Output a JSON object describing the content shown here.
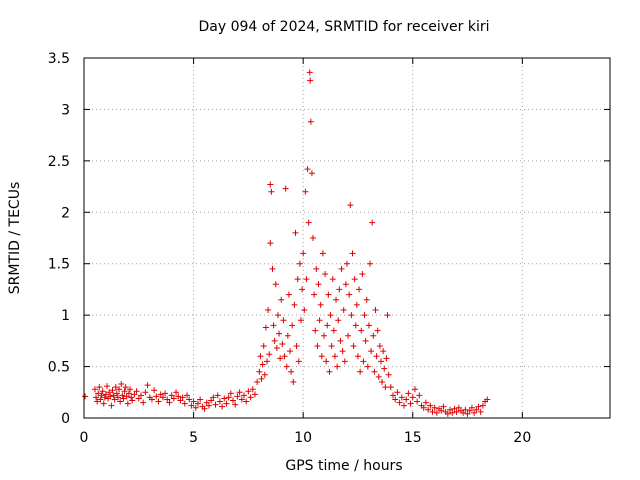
{
  "chart_data": {
    "type": "scatter",
    "title": "Day 094 of 2024, SRMTID for receiver kiri",
    "xlabel": "GPS time / hours",
    "ylabel": "SRMTID / TECUs",
    "xlim": [
      0,
      24
    ],
    "ylim": [
      0,
      3.5
    ],
    "x_ticks": [
      0,
      5,
      10,
      15,
      20
    ],
    "x_tick_labels": [
      "0",
      "5",
      "10",
      "15",
      "20"
    ],
    "y_ticks": [
      0,
      0.5,
      1,
      1.5,
      2,
      2.5,
      3,
      3.5
    ],
    "y_tick_labels": [
      "0",
      "0.5",
      "1",
      "1.5",
      "2",
      "2.5",
      "3",
      "3.5"
    ],
    "grid": true,
    "marker": "plus",
    "color": "#e00000",
    "series": [
      {
        "name": "SRMTID",
        "points": [
          [
            0.05,
            0.21
          ],
          [
            0.5,
            0.28
          ],
          [
            0.55,
            0.2
          ],
          [
            0.6,
            0.16
          ],
          [
            0.65,
            0.24
          ],
          [
            0.7,
            0.3
          ],
          [
            0.75,
            0.18
          ],
          [
            0.8,
            0.22
          ],
          [
            0.85,
            0.26
          ],
          [
            0.9,
            0.14
          ],
          [
            0.95,
            0.2
          ],
          [
            1.0,
            0.23
          ],
          [
            1.05,
            0.31
          ],
          [
            1.1,
            0.19
          ],
          [
            1.15,
            0.25
          ],
          [
            1.2,
            0.21
          ],
          [
            1.25,
            0.12
          ],
          [
            1.3,
            0.27
          ],
          [
            1.35,
            0.22
          ],
          [
            1.4,
            0.18
          ],
          [
            1.45,
            0.3
          ],
          [
            1.5,
            0.24
          ],
          [
            1.55,
            0.2
          ],
          [
            1.6,
            0.28
          ],
          [
            1.65,
            0.16
          ],
          [
            1.7,
            0.33
          ],
          [
            1.75,
            0.22
          ],
          [
            1.8,
            0.19
          ],
          [
            1.85,
            0.26
          ],
          [
            1.9,
            0.3
          ],
          [
            1.95,
            0.21
          ],
          [
            2.0,
            0.14
          ],
          [
            2.05,
            0.24
          ],
          [
            2.1,
            0.28
          ],
          [
            2.15,
            0.2
          ],
          [
            2.2,
            0.17
          ],
          [
            2.3,
            0.23
          ],
          [
            2.4,
            0.26
          ],
          [
            2.5,
            0.19
          ],
          [
            2.6,
            0.22
          ],
          [
            2.7,
            0.15
          ],
          [
            2.8,
            0.25
          ],
          [
            2.9,
            0.32
          ],
          [
            3.0,
            0.2
          ],
          [
            3.1,
            0.18
          ],
          [
            3.2,
            0.27
          ],
          [
            3.3,
            0.21
          ],
          [
            3.4,
            0.16
          ],
          [
            3.5,
            0.23
          ],
          [
            3.6,
            0.2
          ],
          [
            3.7,
            0.24
          ],
          [
            3.8,
            0.18
          ],
          [
            3.9,
            0.15
          ],
          [
            4.0,
            0.22
          ],
          [
            4.1,
            0.19
          ],
          [
            4.2,
            0.25
          ],
          [
            4.3,
            0.21
          ],
          [
            4.4,
            0.17
          ],
          [
            4.5,
            0.2
          ],
          [
            4.6,
            0.14
          ],
          [
            4.7,
            0.22
          ],
          [
            4.8,
            0.18
          ],
          [
            4.9,
            0.12
          ],
          [
            5.0,
            0.16
          ],
          [
            5.1,
            0.1
          ],
          [
            5.2,
            0.14
          ],
          [
            5.3,
            0.18
          ],
          [
            5.4,
            0.11
          ],
          [
            5.5,
            0.09
          ],
          [
            5.6,
            0.15
          ],
          [
            5.7,
            0.12
          ],
          [
            5.8,
            0.17
          ],
          [
            5.9,
            0.2
          ],
          [
            6.0,
            0.13
          ],
          [
            6.1,
            0.22
          ],
          [
            6.2,
            0.16
          ],
          [
            6.3,
            0.11
          ],
          [
            6.4,
            0.19
          ],
          [
            6.5,
            0.14
          ],
          [
            6.6,
            0.2
          ],
          [
            6.7,
            0.24
          ],
          [
            6.8,
            0.17
          ],
          [
            6.9,
            0.13
          ],
          [
            7.0,
            0.21
          ],
          [
            7.1,
            0.25
          ],
          [
            7.2,
            0.18
          ],
          [
            7.3,
            0.22
          ],
          [
            7.4,
            0.16
          ],
          [
            7.5,
            0.26
          ],
          [
            7.6,
            0.2
          ],
          [
            7.7,
            0.28
          ],
          [
            7.8,
            0.23
          ],
          [
            7.9,
            0.35
          ],
          [
            8.0,
            0.45
          ],
          [
            8.05,
            0.6
          ],
          [
            8.1,
            0.38
          ],
          [
            8.15,
            0.52
          ],
          [
            8.2,
            0.7
          ],
          [
            8.25,
            0.42
          ],
          [
            8.3,
            0.88
          ],
          [
            8.35,
            0.55
          ],
          [
            8.4,
            1.05
          ],
          [
            8.45,
            0.62
          ],
          [
            8.5,
            2.27
          ],
          [
            8.5,
            1.7
          ],
          [
            8.55,
            2.2
          ],
          [
            8.6,
            1.45
          ],
          [
            8.65,
            0.9
          ],
          [
            8.7,
            0.75
          ],
          [
            8.75,
            1.3
          ],
          [
            8.8,
            0.68
          ],
          [
            8.85,
            1.0
          ],
          [
            8.9,
            0.82
          ],
          [
            8.95,
            0.58
          ],
          [
            9.0,
            1.15
          ],
          [
            9.05,
            0.72
          ],
          [
            9.1,
            0.95
          ],
          [
            9.15,
            0.6
          ],
          [
            9.2,
            2.23
          ],
          [
            9.25,
            0.5
          ],
          [
            9.3,
            0.8
          ],
          [
            9.35,
            1.2
          ],
          [
            9.4,
            0.65
          ],
          [
            9.45,
            0.45
          ],
          [
            9.5,
            0.9
          ],
          [
            9.55,
            0.35
          ],
          [
            9.6,
            1.1
          ],
          [
            9.65,
            1.8
          ],
          [
            9.7,
            0.7
          ],
          [
            9.75,
            1.35
          ],
          [
            9.8,
            0.55
          ],
          [
            9.85,
            1.5
          ],
          [
            9.9,
            0.95
          ],
          [
            9.95,
            1.25
          ],
          [
            10.0,
            1.6
          ],
          [
            10.05,
            1.05
          ],
          [
            10.1,
            2.2
          ],
          [
            10.15,
            1.35
          ],
          [
            10.2,
            2.42
          ],
          [
            10.25,
            1.9
          ],
          [
            10.3,
            3.36
          ],
          [
            10.32,
            3.28
          ],
          [
            10.35,
            2.88
          ],
          [
            10.4,
            2.38
          ],
          [
            10.45,
            1.75
          ],
          [
            10.5,
            1.2
          ],
          [
            10.55,
            0.85
          ],
          [
            10.6,
            1.45
          ],
          [
            10.65,
            0.7
          ],
          [
            10.7,
            1.3
          ],
          [
            10.75,
            0.95
          ],
          [
            10.8,
            1.1
          ],
          [
            10.85,
            0.6
          ],
          [
            10.9,
            1.6
          ],
          [
            10.95,
            0.8
          ],
          [
            11.0,
            1.4
          ],
          [
            11.05,
            0.55
          ],
          [
            11.1,
            0.9
          ],
          [
            11.15,
            1.2
          ],
          [
            11.2,
            0.45
          ],
          [
            11.25,
            1.0
          ],
          [
            11.3,
            0.7
          ],
          [
            11.35,
            1.35
          ],
          [
            11.4,
            0.85
          ],
          [
            11.45,
            0.6
          ],
          [
            11.5,
            1.15
          ],
          [
            11.55,
            0.5
          ],
          [
            11.6,
            0.95
          ],
          [
            11.65,
            1.25
          ],
          [
            11.7,
            0.75
          ],
          [
            11.75,
            1.45
          ],
          [
            11.8,
            0.65
          ],
          [
            11.85,
            1.05
          ],
          [
            11.9,
            0.55
          ],
          [
            11.95,
            1.3
          ],
          [
            12.0,
            1.5
          ],
          [
            12.05,
            0.8
          ],
          [
            12.1,
            1.2
          ],
          [
            12.15,
            2.07
          ],
          [
            12.2,
            1.0
          ],
          [
            12.25,
            1.6
          ],
          [
            12.3,
            0.7
          ],
          [
            12.35,
            1.35
          ],
          [
            12.4,
            0.9
          ],
          [
            12.45,
            1.1
          ],
          [
            12.5,
            0.6
          ],
          [
            12.55,
            1.25
          ],
          [
            12.6,
            0.45
          ],
          [
            12.65,
            0.85
          ],
          [
            12.7,
            1.4
          ],
          [
            12.75,
            0.55
          ],
          [
            12.8,
            1.0
          ],
          [
            12.85,
            0.75
          ],
          [
            12.9,
            1.15
          ],
          [
            12.95,
            0.5
          ],
          [
            13.0,
            0.9
          ],
          [
            13.05,
            1.5
          ],
          [
            13.1,
            0.65
          ],
          [
            13.15,
            1.9
          ],
          [
            13.2,
            0.8
          ],
          [
            13.25,
            0.45
          ],
          [
            13.3,
            1.05
          ],
          [
            13.35,
            0.6
          ],
          [
            13.4,
            0.85
          ],
          [
            13.45,
            0.4
          ],
          [
            13.5,
            0.7
          ],
          [
            13.55,
            0.55
          ],
          [
            13.6,
            0.35
          ],
          [
            13.65,
            0.65
          ],
          [
            13.7,
            0.48
          ],
          [
            13.75,
            0.3
          ],
          [
            13.8,
            0.58
          ],
          [
            13.85,
            1.0
          ],
          [
            13.9,
            0.42
          ],
          [
            14.0,
            0.3
          ],
          [
            14.1,
            0.22
          ],
          [
            14.2,
            0.18
          ],
          [
            14.3,
            0.25
          ],
          [
            14.4,
            0.15
          ],
          [
            14.5,
            0.2
          ],
          [
            14.6,
            0.12
          ],
          [
            14.7,
            0.18
          ],
          [
            14.8,
            0.24
          ],
          [
            14.9,
            0.14
          ],
          [
            15.0,
            0.2
          ],
          [
            15.1,
            0.28
          ],
          [
            15.2,
            0.16
          ],
          [
            15.3,
            0.22
          ],
          [
            15.4,
            0.12
          ],
          [
            15.5,
            0.1
          ],
          [
            15.6,
            0.15
          ],
          [
            15.7,
            0.08
          ],
          [
            15.8,
            0.12
          ],
          [
            15.9,
            0.06
          ],
          [
            16.0,
            0.1
          ],
          [
            16.1,
            0.05
          ],
          [
            16.2,
            0.09
          ],
          [
            16.3,
            0.07
          ],
          [
            16.4,
            0.11
          ],
          [
            16.5,
            0.06
          ],
          [
            16.6,
            0.04
          ],
          [
            16.7,
            0.08
          ],
          [
            16.8,
            0.05
          ],
          [
            16.9,
            0.09
          ],
          [
            17.0,
            0.06
          ],
          [
            17.1,
            0.1
          ],
          [
            17.2,
            0.07
          ],
          [
            17.3,
            0.05
          ],
          [
            17.4,
            0.08
          ],
          [
            17.5,
            0.04
          ],
          [
            17.6,
            0.07
          ],
          [
            17.7,
            0.1
          ],
          [
            17.8,
            0.05
          ],
          [
            17.9,
            0.08
          ],
          [
            18.0,
            0.11
          ],
          [
            18.1,
            0.06
          ],
          [
            18.2,
            0.12
          ],
          [
            18.3,
            0.16
          ],
          [
            18.4,
            0.18
          ]
        ]
      }
    ]
  }
}
